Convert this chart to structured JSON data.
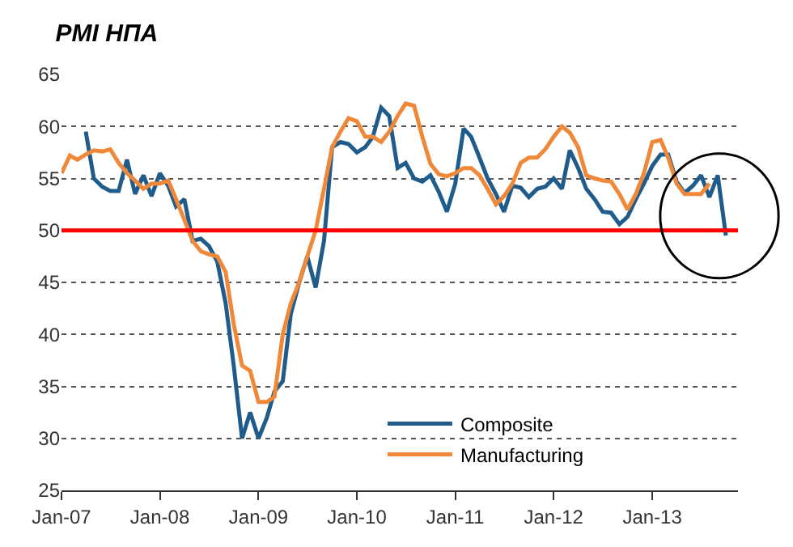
{
  "chart_data": {
    "type": "line",
    "title": "PMI НПА",
    "xlim": [
      "2007-01",
      "2013-11-15"
    ],
    "xticks": [
      {
        "value": "2007-01",
        "label": "Jan-07"
      },
      {
        "value": "2008-01",
        "label": "Jan-08"
      },
      {
        "value": "2009-01",
        "label": "Jan-09"
      },
      {
        "value": "2010-01",
        "label": "Jan-10"
      },
      {
        "value": "2011-01",
        "label": "Jan-11"
      },
      {
        "value": "2012-01",
        "label": "Jan-12"
      },
      {
        "value": "2013-01",
        "label": "Jan-13"
      }
    ],
    "ylim": [
      25,
      65
    ],
    "yticks": [
      25,
      30,
      35,
      40,
      45,
      50,
      55,
      60,
      65
    ],
    "grid": "y",
    "legend": "bottom",
    "marker": "none",
    "line_style": "solid",
    "ref_lines": [
      {
        "axis": "y",
        "value": 50,
        "color": "#ff0000",
        "line_style": "solid"
      }
    ],
    "series": [
      {
        "name": "Composite",
        "color": "#1f5c8b",
        "x": [
          "2007-04",
          "2007-05",
          "2007-06",
          "2007-07",
          "2007-08",
          "2007-09",
          "2007-10",
          "2007-11",
          "2007-12",
          "2008-01",
          "2008-02",
          "2008-03",
          "2008-04",
          "2008-05",
          "2008-06",
          "2008-07",
          "2008-08",
          "2008-09",
          "2008-10",
          "2008-11",
          "2008-12",
          "2009-01",
          "2009-02",
          "2009-03",
          "2009-04",
          "2009-05",
          "2009-06",
          "2009-07",
          "2009-08",
          "2009-09",
          "2009-10",
          "2009-11",
          "2009-12",
          "2010-01",
          "2010-02",
          "2010-03",
          "2010-04",
          "2010-05",
          "2010-06",
          "2010-07",
          "2010-08",
          "2010-09",
          "2010-10",
          "2010-11",
          "2010-12",
          "2011-01",
          "2011-02",
          "2011-03",
          "2011-04",
          "2011-05",
          "2011-06",
          "2011-07",
          "2011-08",
          "2011-09",
          "2011-10",
          "2011-11",
          "2011-12",
          "2012-01",
          "2012-02",
          "2012-03",
          "2012-04",
          "2012-05",
          "2012-06",
          "2012-07",
          "2012-08",
          "2012-09",
          "2012-10",
          "2012-11",
          "2012-12",
          "2013-01",
          "2013-02",
          "2013-03",
          "2013-04",
          "2013-05",
          "2013-06",
          "2013-07",
          "2013-08",
          "2013-09",
          "2013-10"
        ],
        "values": [
          59.5,
          55,
          54.2,
          53.8,
          53.8,
          56.8,
          53.5,
          55.3,
          53.3,
          55.5,
          54.3,
          52.3,
          53,
          49,
          49.2,
          48.5,
          47,
          43,
          37,
          30,
          32.5,
          30,
          32,
          34.5,
          35.5,
          42,
          45,
          47.5,
          44.5,
          49,
          58,
          58.5,
          58.3,
          57.5,
          58,
          59,
          61.8,
          61,
          56,
          56.5,
          55,
          54.7,
          55.3,
          53.7,
          51.8,
          54.5,
          59.8,
          59,
          57,
          55,
          53.5,
          51.8,
          54.3,
          54.1,
          53.2,
          54,
          54.2,
          55,
          54,
          57.7,
          56,
          54,
          53,
          51.8,
          51.7,
          50.6,
          51.3,
          53,
          54.5,
          56.2,
          57.3,
          57.3,
          54.7,
          53.6,
          54.3,
          55.3,
          53.2,
          55.3,
          49.5
        ]
      },
      {
        "name": "Manufacturing",
        "color": "#f0883a",
        "x": [
          "2007-01",
          "2007-02",
          "2007-03",
          "2007-04",
          "2007-05",
          "2007-06",
          "2007-07",
          "2007-08",
          "2007-09",
          "2007-10",
          "2007-11",
          "2007-12",
          "2008-01",
          "2008-02",
          "2008-03",
          "2008-04",
          "2008-05",
          "2008-06",
          "2008-07",
          "2008-08",
          "2008-09",
          "2008-10",
          "2008-11",
          "2008-12",
          "2009-01",
          "2009-02",
          "2009-03",
          "2009-04",
          "2009-05",
          "2009-06",
          "2009-07",
          "2009-08",
          "2009-09",
          "2009-10",
          "2009-11",
          "2009-12",
          "2010-01",
          "2010-02",
          "2010-03",
          "2010-04",
          "2010-05",
          "2010-06",
          "2010-07",
          "2010-08",
          "2010-09",
          "2010-10",
          "2010-11",
          "2010-12",
          "2011-01",
          "2011-02",
          "2011-03",
          "2011-04",
          "2011-05",
          "2011-06",
          "2011-07",
          "2011-08",
          "2011-09",
          "2011-10",
          "2011-11",
          "2011-12",
          "2012-01",
          "2012-02",
          "2012-03",
          "2012-04",
          "2012-05",
          "2012-06",
          "2012-07",
          "2012-08",
          "2012-09",
          "2012-10",
          "2012-11",
          "2012-12",
          "2013-01",
          "2013-02",
          "2013-03",
          "2013-04",
          "2013-05",
          "2013-06",
          "2013-07",
          "2013-08"
        ],
        "values": [
          55.5,
          57.2,
          56.8,
          57.3,
          57.7,
          57.6,
          57.8,
          56.5,
          55.5,
          54.8,
          54,
          54.5,
          54.5,
          54.8,
          53,
          51,
          49,
          48,
          47.7,
          47.5,
          46,
          41,
          37,
          36.5,
          33.5,
          33.5,
          34,
          40,
          43,
          45,
          47.5,
          50,
          54,
          58,
          59.5,
          60.8,
          60.5,
          59,
          59,
          58.5,
          59.5,
          61,
          62.2,
          62,
          59,
          56.4,
          55.4,
          55.2,
          55.5,
          56,
          56,
          55.3,
          54,
          52.5,
          53.3,
          54.5,
          56.5,
          57,
          57,
          57.8,
          59,
          60,
          59.4,
          58,
          55.3,
          55,
          54.8,
          54.7,
          53.5,
          52,
          53.5,
          55.5,
          58.5,
          58.7,
          57,
          54.5,
          53.5,
          53.5,
          53.5,
          54.5
        ]
      }
    ]
  }
}
